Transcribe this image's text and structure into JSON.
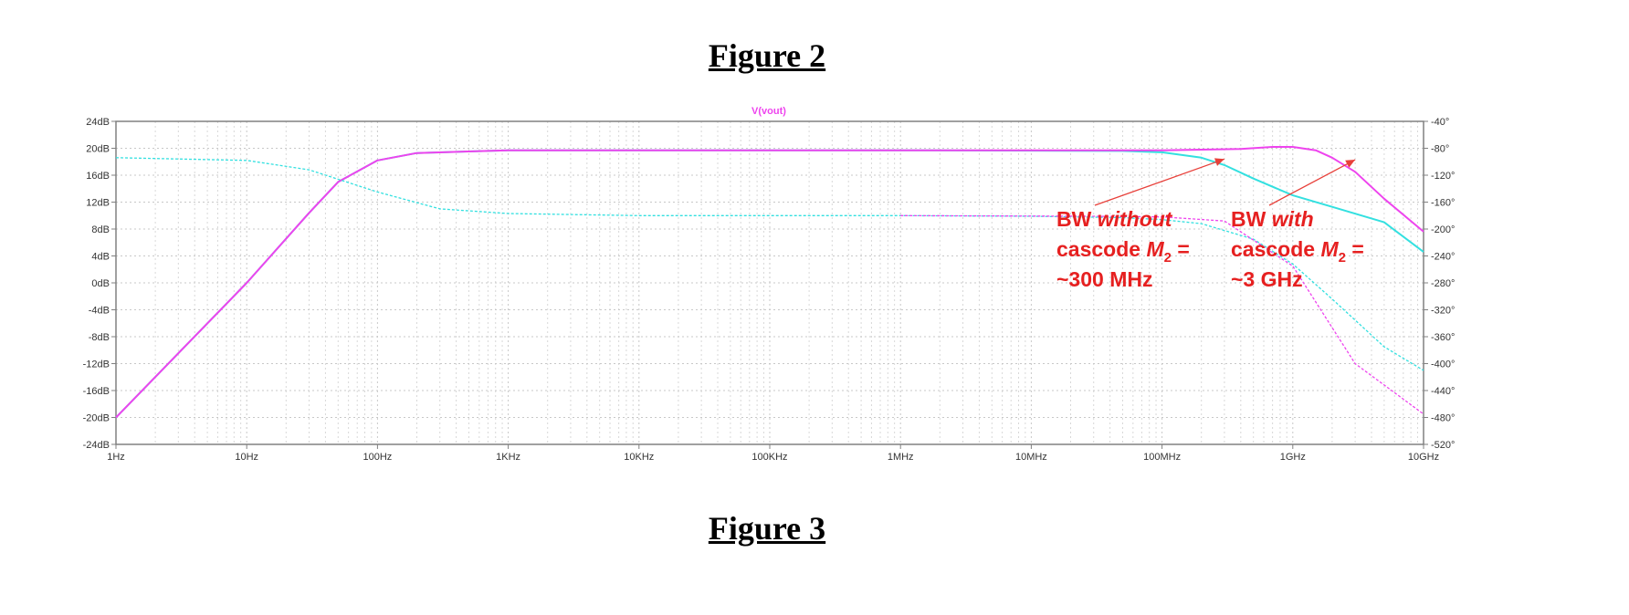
{
  "captions": {
    "top": "Figure 2",
    "bottom": "Figure 3"
  },
  "chart_data": {
    "type": "line",
    "title": "V(vout)",
    "xlabel": "",
    "ylabel": "",
    "x_scale": "log",
    "xlim": [
      1,
      10000000000
    ],
    "ylim": [
      -24,
      24
    ],
    "y2lim": [
      -520,
      -40
    ],
    "grid": true,
    "x_ticks": [
      "1Hz",
      "10Hz",
      "100Hz",
      "1KHz",
      "10KHz",
      "100KHz",
      "1MHz",
      "10MHz",
      "100MHz",
      "1GHz",
      "10GHz"
    ],
    "y_ticks": [
      "24dB",
      "20dB",
      "16dB",
      "12dB",
      "8dB",
      "4dB",
      "0dB",
      "-4dB",
      "-8dB",
      "-12dB",
      "-16dB",
      "-20dB",
      "-24dB"
    ],
    "y2_ticks": [
      "-40°",
      "-80°",
      "-120°",
      "-160°",
      "-200°",
      "-240°",
      "-280°",
      "-320°",
      "-360°",
      "-400°",
      "-440°",
      "-480°",
      "-520°"
    ],
    "series": [
      {
        "color": "#33e0e0",
        "axis": "left",
        "style": "solid",
        "x": [
          1,
          10,
          30,
          50,
          100,
          200,
          1000,
          1000000,
          50000000,
          100000000,
          200000000,
          300000000,
          500000000,
          1000000000,
          2000000000,
          5000000000,
          10000000000
        ],
        "y": [
          -20,
          0,
          10.4,
          15,
          18.2,
          19.3,
          19.7,
          19.7,
          19.6,
          19.4,
          18.6,
          17.5,
          15.5,
          13,
          11.3,
          9,
          4.6
        ]
      },
      {
        "color": "#ee44ee",
        "axis": "left",
        "style": "solid",
        "x": [
          1,
          10,
          30,
          50,
          100,
          200,
          1000,
          1000000,
          100000000,
          400000000,
          700000000,
          1000000000,
          1500000000,
          2000000000,
          3000000000,
          5000000000,
          10000000000
        ],
        "y": [
          -20,
          0,
          10.4,
          15,
          18.2,
          19.3,
          19.7,
          19.7,
          19.7,
          19.9,
          20.2,
          20.2,
          19.7,
          18.6,
          16.5,
          12.5,
          7.6
        ]
      },
      {
        "color": "#33e0e0",
        "axis": "right",
        "style": "dashed",
        "x": [
          1,
          10,
          30,
          100,
          300,
          1000,
          10000,
          1000000,
          10000000,
          50000000,
          100000000,
          200000000,
          500000000,
          1000000000,
          2000000000,
          5000000000,
          10000000000
        ],
        "y": [
          -94,
          -98,
          -112,
          -145,
          -170,
          -177,
          -180,
          -180,
          -181,
          -183,
          -186,
          -192,
          -215,
          -252,
          -304,
          -375,
          -410
        ]
      },
      {
        "color": "#ee44ee",
        "axis": "right",
        "style": "dashed",
        "x": [
          1000000,
          30000000,
          100000000,
          300000000,
          1000000000,
          3000000000,
          10000000000
        ],
        "y": [
          -180,
          -181,
          -182,
          -188,
          -255,
          -400,
          -475
        ]
      }
    ],
    "annotations": [
      {
        "lines": [
          [
            "BW ",
            "without"
          ],
          [
            "cascode M",
            "2",
            " ="
          ],
          [
            "~300 MHz"
          ]
        ],
        "target_x": 300000000,
        "target_y": 18.4
      },
      {
        "lines": [
          [
            "BW ",
            "with"
          ],
          [
            "cascode M",
            "2",
            " ="
          ],
          [
            "~3 GHz"
          ]
        ],
        "target_x": 3000000000,
        "target_y": 18.3
      }
    ]
  }
}
